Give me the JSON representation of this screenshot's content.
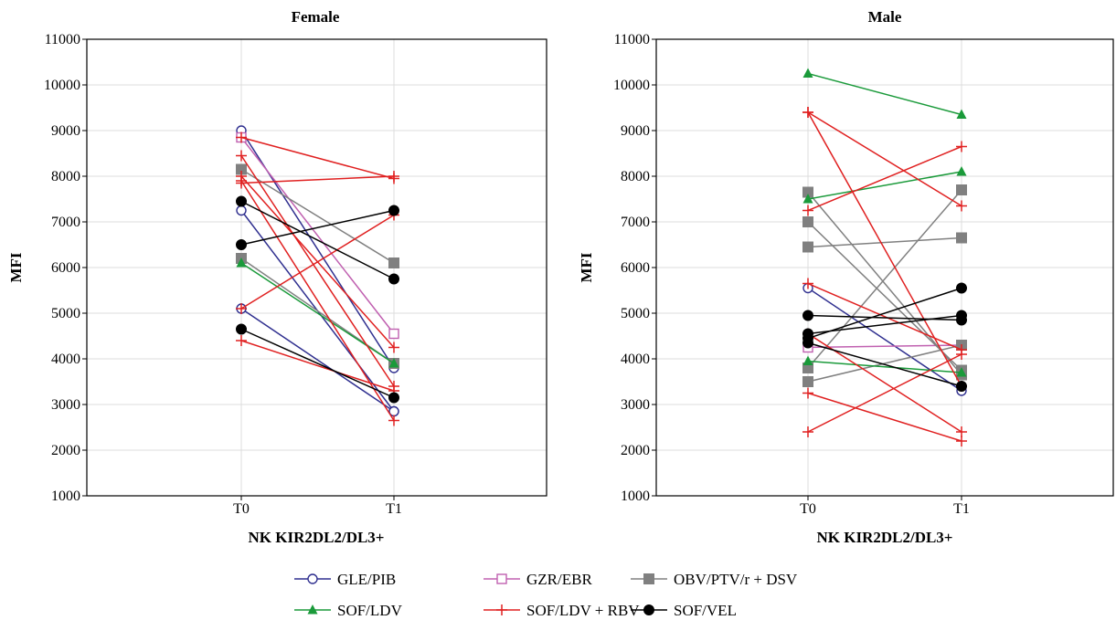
{
  "chart_data": [
    {
      "type": "line",
      "title": "Female",
      "xlabel": "NK KIR2DL2/DL3+",
      "ylabel": "MFI",
      "categories": [
        "T0",
        "T1"
      ],
      "ylim": [
        1000,
        11000
      ],
      "yticks": [
        1000,
        2000,
        3000,
        4000,
        5000,
        6000,
        7000,
        8000,
        9000,
        10000,
        11000
      ],
      "grid": true,
      "series": [
        {
          "group": "GLE/PIB",
          "values": [
            9000,
            3800
          ]
        },
        {
          "group": "GLE/PIB",
          "values": [
            7250,
            2850
          ]
        },
        {
          "group": "GLE/PIB",
          "values": [
            5100,
            2850
          ]
        },
        {
          "group": "GZR/EBR",
          "values": [
            8850,
            4550
          ]
        },
        {
          "group": "OBV/PTV/r + DSV",
          "values": [
            8150,
            6100
          ]
        },
        {
          "group": "OBV/PTV/r + DSV",
          "values": [
            6200,
            3900
          ]
        },
        {
          "group": "SOF/LDV",
          "values": [
            6100,
            3900
          ]
        },
        {
          "group": "SOF/LDV + RBV",
          "values": [
            8850,
            7950
          ]
        },
        {
          "group": "SOF/LDV + RBV",
          "values": [
            8450,
            3400
          ]
        },
        {
          "group": "SOF/LDV + RBV",
          "values": [
            8000,
            4250
          ]
        },
        {
          "group": "SOF/LDV + RBV",
          "values": [
            7850,
            8000
          ]
        },
        {
          "group": "SOF/LDV + RBV",
          "values": [
            7900,
            2650
          ]
        },
        {
          "group": "SOF/LDV + RBV",
          "values": [
            5100,
            7150
          ]
        },
        {
          "group": "SOF/LDV + RBV",
          "values": [
            4400,
            3300
          ]
        },
        {
          "group": "SOF/VEL",
          "values": [
            7450,
            5750
          ]
        },
        {
          "group": "SOF/VEL",
          "values": [
            6500,
            7250
          ]
        },
        {
          "group": "SOF/VEL",
          "values": [
            4650,
            3150
          ]
        }
      ]
    },
    {
      "type": "line",
      "title": "Male",
      "xlabel": "NK KIR2DL2/DL3+",
      "ylabel": "MFI",
      "categories": [
        "T0",
        "T1"
      ],
      "ylim": [
        1000,
        11000
      ],
      "yticks": [
        1000,
        2000,
        3000,
        4000,
        5000,
        6000,
        7000,
        8000,
        9000,
        10000,
        11000
      ],
      "grid": true,
      "series": [
        {
          "group": "GLE/PIB",
          "values": [
            5550,
            3300
          ]
        },
        {
          "group": "GZR/EBR",
          "values": [
            4250,
            4300
          ]
        },
        {
          "group": "OBV/PTV/r + DSV",
          "values": [
            7650,
            3650
          ]
        },
        {
          "group": "OBV/PTV/r + DSV",
          "values": [
            7000,
            3750
          ]
        },
        {
          "group": "OBV/PTV/r + DSV",
          "values": [
            6450,
            6650
          ]
        },
        {
          "group": "OBV/PTV/r + DSV",
          "values": [
            3800,
            7700
          ]
        },
        {
          "group": "OBV/PTV/r + DSV",
          "values": [
            3500,
            4300
          ]
        },
        {
          "group": "SOF/LDV",
          "values": [
            10250,
            9350
          ]
        },
        {
          "group": "SOF/LDV",
          "values": [
            7500,
            8100
          ]
        },
        {
          "group": "SOF/LDV",
          "values": [
            3950,
            3700
          ]
        },
        {
          "group": "SOF/LDV + RBV",
          "values": [
            9400,
            7350
          ]
        },
        {
          "group": "SOF/LDV + RBV",
          "values": [
            9400,
            3400
          ]
        },
        {
          "group": "SOF/LDV + RBV",
          "values": [
            7250,
            8650
          ]
        },
        {
          "group": "SOF/LDV + RBV",
          "values": [
            5650,
            4200
          ]
        },
        {
          "group": "SOF/LDV + RBV",
          "values": [
            4550,
            2400
          ]
        },
        {
          "group": "SOF/LDV + RBV",
          "values": [
            3250,
            2200
          ]
        },
        {
          "group": "SOF/LDV + RBV",
          "values": [
            2400,
            4100
          ]
        },
        {
          "group": "SOF/VEL",
          "values": [
            4950,
            4850
          ]
        },
        {
          "group": "SOF/VEL",
          "values": [
            4450,
            5550
          ]
        },
        {
          "group": "SOF/VEL",
          "values": [
            4350,
            3400
          ]
        },
        {
          "group": "SOF/VEL",
          "values": [
            4550,
            4950
          ]
        }
      ]
    }
  ],
  "legend": {
    "placement": "bottom-center",
    "entries": [
      {
        "label": "GLE/PIB",
        "color": "#2f2f8f",
        "marker": "circle-open"
      },
      {
        "label": "GZR/EBR",
        "color": "#c060b0",
        "marker": "square-open"
      },
      {
        "label": "OBV/PTV/r + DSV",
        "color": "#808080",
        "marker": "square-filled"
      },
      {
        "label": "SOF/LDV",
        "color": "#1a9a3a",
        "marker": "triangle-filled"
      },
      {
        "label": "SOF/LDV + RBV",
        "color": "#e02020",
        "marker": "plus"
      },
      {
        "label": "SOF/VEL",
        "color": "#000000",
        "marker": "circle-filled"
      }
    ]
  }
}
